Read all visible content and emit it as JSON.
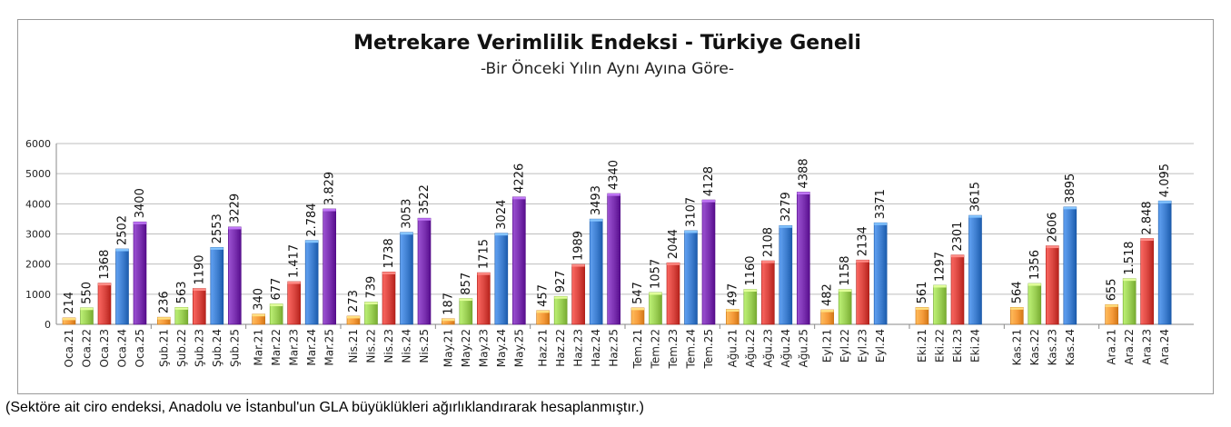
{
  "chart_data": {
    "type": "bar",
    "title": "Metrekare Verimlilik Endeksi - Türkiye Geneli",
    "subtitle": "-Bir Önceki Yılın Aynı Ayına Göre-",
    "ylim": [
      0,
      6000
    ],
    "yticks": [
      "0",
      "1000",
      "2000",
      "3000",
      "4000",
      "5000",
      "6000"
    ],
    "grid": true,
    "groups": [
      {
        "bars": [
          {
            "label": "Oca.21",
            "value": 214,
            "text": "214",
            "year": "21"
          },
          {
            "label": "Oca.22",
            "value": 550,
            "text": "550",
            "year": "22"
          },
          {
            "label": "Oca.23",
            "value": 1368,
            "text": "1368",
            "year": "23"
          },
          {
            "label": "Oca.24",
            "value": 2502,
            "text": "2502",
            "year": "24"
          },
          {
            "label": "Oca.25",
            "value": 3400,
            "text": "3400",
            "year": "25"
          }
        ]
      },
      {
        "bars": [
          {
            "label": "Şub.21",
            "value": 236,
            "text": "236",
            "year": "21"
          },
          {
            "label": "Şub.22",
            "value": 563,
            "text": "563",
            "year": "22"
          },
          {
            "label": "Şub.23",
            "value": 1190,
            "text": "1190",
            "year": "23"
          },
          {
            "label": "Şub.24",
            "value": 2553,
            "text": "2553",
            "year": "24"
          },
          {
            "label": "Şub.25",
            "value": 3229,
            "text": "3229",
            "year": "25"
          }
        ]
      },
      {
        "bars": [
          {
            "label": "Mar.21",
            "value": 340,
            "text": "340",
            "year": "21"
          },
          {
            "label": "Mar.22",
            "value": 677,
            "text": "677",
            "year": "22"
          },
          {
            "label": "Mar.23",
            "value": 1417,
            "text": "1.417",
            "year": "23"
          },
          {
            "label": "Mar.24",
            "value": 2784,
            "text": "2.784",
            "year": "24"
          },
          {
            "label": "Mar.25",
            "value": 3829,
            "text": "3.829",
            "year": "25"
          }
        ]
      },
      {
        "bars": [
          {
            "label": "Nis.21",
            "value": 273,
            "text": "273",
            "year": "21"
          },
          {
            "label": "Nis.22",
            "value": 739,
            "text": "739",
            "year": "22"
          },
          {
            "label": "Nis.23",
            "value": 1738,
            "text": "1738",
            "year": "23"
          },
          {
            "label": "Nis.24",
            "value": 3053,
            "text": "3053",
            "year": "24"
          },
          {
            "label": "Nis.25",
            "value": 3522,
            "text": "3522",
            "year": "25"
          }
        ]
      },
      {
        "bars": [
          {
            "label": "May.21",
            "value": 187,
            "text": "187",
            "year": "21"
          },
          {
            "label": "May.22",
            "value": 857,
            "text": "857",
            "year": "22"
          },
          {
            "label": "May.23",
            "value": 1715,
            "text": "1715",
            "year": "23"
          },
          {
            "label": "May.24",
            "value": 3024,
            "text": "3024",
            "year": "24"
          },
          {
            "label": "May.25",
            "value": 4226,
            "text": "4226",
            "year": "25"
          }
        ]
      },
      {
        "bars": [
          {
            "label": "Haz.21",
            "value": 457,
            "text": "457",
            "year": "21"
          },
          {
            "label": "Haz.22",
            "value": 927,
            "text": "927",
            "year": "22"
          },
          {
            "label": "Haz.23",
            "value": 1989,
            "text": "1989",
            "year": "23"
          },
          {
            "label": "Haz.24",
            "value": 3493,
            "text": "3493",
            "year": "24"
          },
          {
            "label": "Haz.25",
            "value": 4340,
            "text": "4340",
            "year": "25"
          }
        ]
      },
      {
        "bars": [
          {
            "label": "Tem.21",
            "value": 547,
            "text": "547",
            "year": "21"
          },
          {
            "label": "Tem.22",
            "value": 1057,
            "text": "1057",
            "year": "22"
          },
          {
            "label": "Tem.23",
            "value": 2044,
            "text": "2044",
            "year": "23"
          },
          {
            "label": "Tem.24",
            "value": 3107,
            "text": "3107",
            "year": "24"
          },
          {
            "label": "Tem.25",
            "value": 4128,
            "text": "4128",
            "year": "25"
          }
        ]
      },
      {
        "bars": [
          {
            "label": "Ağu.21",
            "value": 497,
            "text": "497",
            "year": "21"
          },
          {
            "label": "Ağu.22",
            "value": 1160,
            "text": "1160",
            "year": "22"
          },
          {
            "label": "Ağu.23",
            "value": 2108,
            "text": "2108",
            "year": "23"
          },
          {
            "label": "Ağu.24",
            "value": 3279,
            "text": "3279",
            "year": "24"
          },
          {
            "label": "Ağu.25",
            "value": 4388,
            "text": "4388",
            "year": "25"
          }
        ]
      },
      {
        "bars": [
          {
            "label": "Eyl.21",
            "value": 482,
            "text": "482",
            "year": "21"
          },
          {
            "label": "Eyl.22",
            "value": 1158,
            "text": "1158",
            "year": "22"
          },
          {
            "label": "Eyl.23",
            "value": 2134,
            "text": "2134",
            "year": "23"
          },
          {
            "label": "Eyl.24",
            "value": 3371,
            "text": "3371",
            "year": "24"
          }
        ]
      },
      {
        "bars": [
          {
            "label": "Eki.21",
            "value": 561,
            "text": "561",
            "year": "21"
          },
          {
            "label": "Eki.22",
            "value": 1297,
            "text": "1297",
            "year": "22"
          },
          {
            "label": "Eki.23",
            "value": 2301,
            "text": "2301",
            "year": "23"
          },
          {
            "label": "Eki.24",
            "value": 3615,
            "text": "3615",
            "year": "24"
          }
        ]
      },
      {
        "bars": [
          {
            "label": "Kas.21",
            "value": 564,
            "text": "564",
            "year": "21"
          },
          {
            "label": "Kas.22",
            "value": 1356,
            "text": "1356",
            "year": "22"
          },
          {
            "label": "Kas.23",
            "value": 2606,
            "text": "2606",
            "year": "23"
          },
          {
            "label": "Kas.24",
            "value": 3895,
            "text": "3895",
            "year": "24"
          }
        ]
      },
      {
        "bars": [
          {
            "label": "Ara.21",
            "value": 655,
            "text": "655",
            "year": "21"
          },
          {
            "label": "Ara.22",
            "value": 1518,
            "text": "1.518",
            "year": "22"
          },
          {
            "label": "Ara.23",
            "value": 2848,
            "text": "2.848",
            "year": "23"
          },
          {
            "label": "Ara.24",
            "value": 4095,
            "text": "4.095",
            "year": "24"
          }
        ]
      }
    ],
    "year_colors": {
      "21": "#f59a3a",
      "22": "#9bcf54",
      "23": "#d9453f",
      "24": "#3f7fd0",
      "25": "#7a30b0"
    }
  },
  "footnote": "(Sektöre ait ciro endeksi, Anadolu ve İstanbul'un GLA büyüklükleri ağırlıklandırarak hesaplanmıştır.)"
}
